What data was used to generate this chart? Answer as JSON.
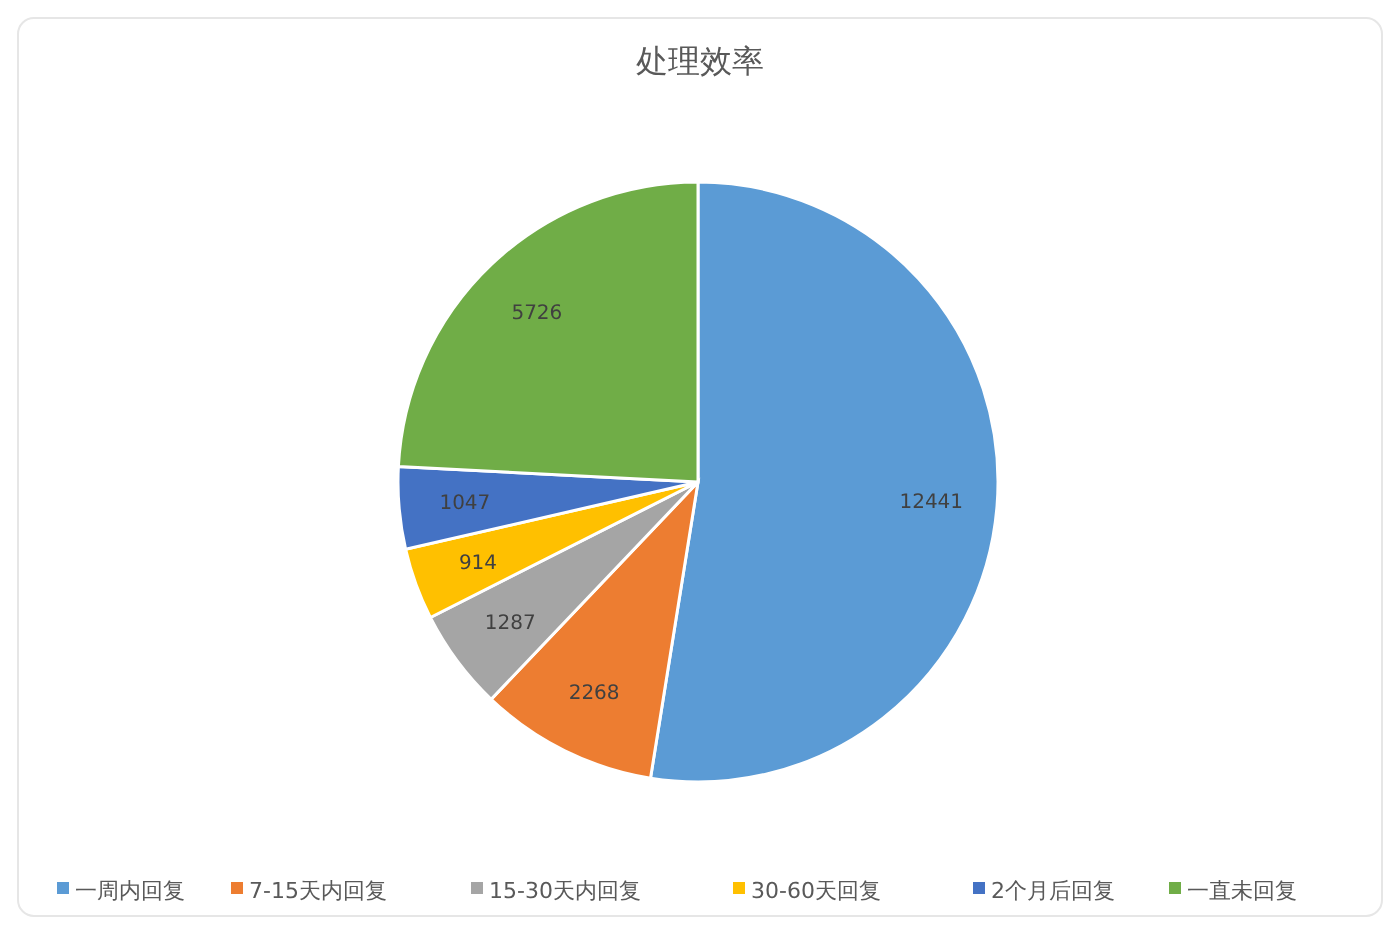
{
  "chart_data": {
    "type": "pie",
    "title": "处理效率",
    "categories": [
      "一周内回复",
      "7-15天内回复",
      "15-30天内回复",
      "30-60天回复",
      "2个月后回复",
      "一直未回复"
    ],
    "values": [
      12441,
      2268,
      1287,
      914,
      1047,
      5726
    ],
    "colors": [
      "#5b9bd5",
      "#ed7d31",
      "#a5a5a5",
      "#ffc000",
      "#4472c4",
      "#70ad47"
    ],
    "data_labels": true,
    "legend": "bottom"
  }
}
